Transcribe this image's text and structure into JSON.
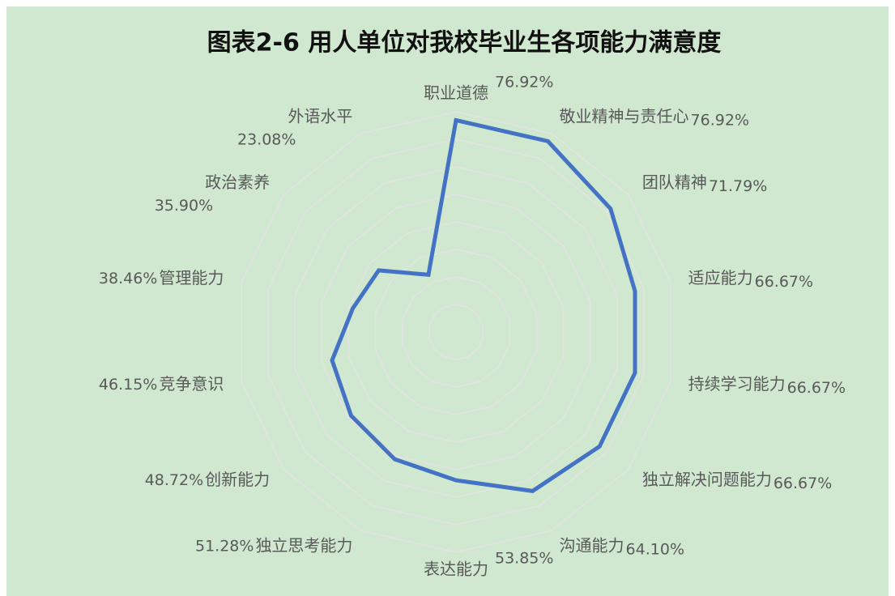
{
  "chart_data": {
    "type": "radar",
    "title": "图表2-6 用人单位对我校毕业生各项能力满意度",
    "categories": [
      "职业道德",
      "敬业精神与责任心",
      "团队精神",
      "适应能力",
      "持续学习能力",
      "独立解决问题能力",
      "沟通能力",
      "表达能力",
      "独立思考能力",
      "创新能力",
      "竞争意识",
      "管理能力",
      "政治素养",
      "外语水平"
    ],
    "values": [
      76.92,
      76.92,
      71.79,
      66.67,
      66.67,
      66.67,
      64.1,
      53.85,
      51.28,
      48.72,
      46.15,
      38.46,
      35.9,
      23.08
    ],
    "value_labels": [
      "76.92%",
      "76.92%",
      "71.79%",
      "66.67%",
      "66.67%",
      "66.67%",
      "64.10%",
      "53.85%",
      "51.28%",
      "48.72%",
      "46.15%",
      "38.46%",
      "35.90%",
      "23.08%"
    ],
    "color": "#4472c4",
    "ylim": [
      0,
      80
    ],
    "yticks": [
      0,
      10,
      20,
      30,
      40,
      50,
      60,
      70,
      80
    ],
    "tick_labels": false,
    "grid": true
  }
}
